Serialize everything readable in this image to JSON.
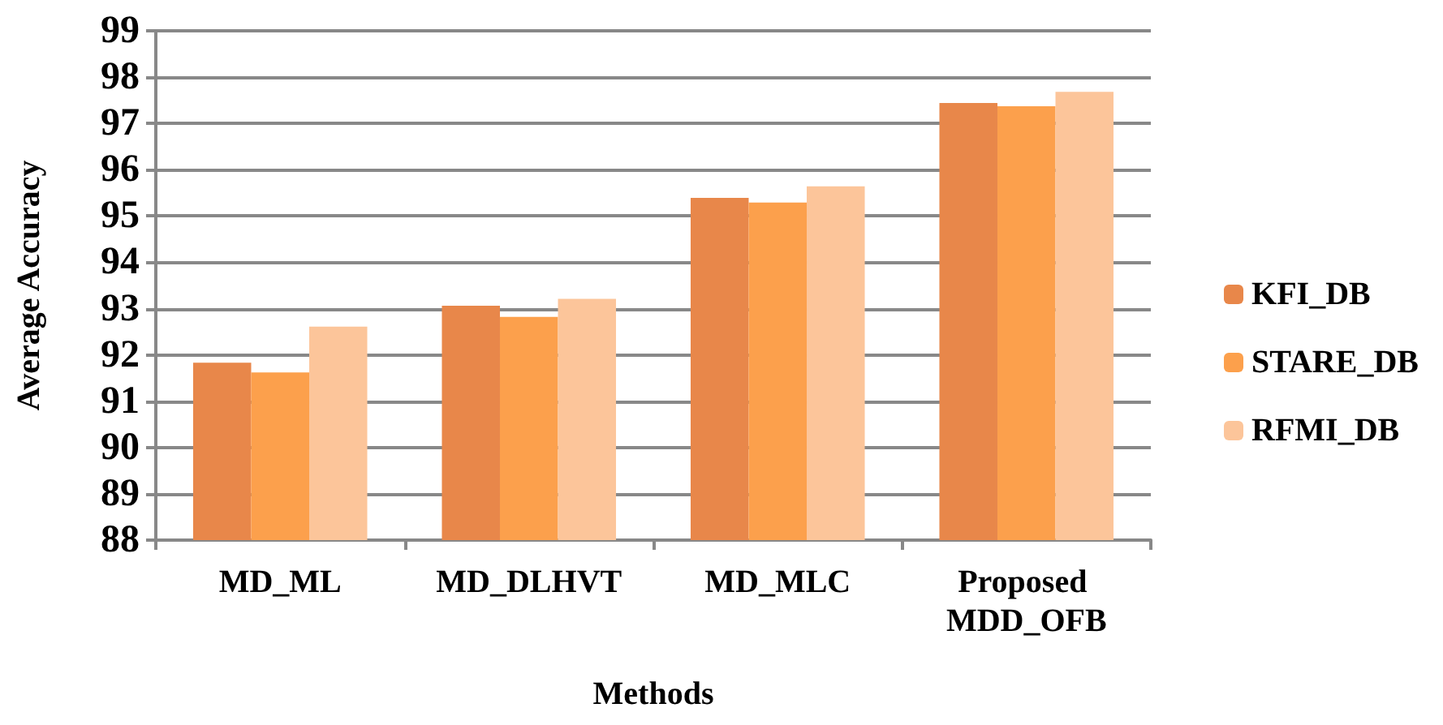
{
  "chart_data": {
    "type": "bar",
    "xlabel": "Methods",
    "ylabel": "Average Accuracy",
    "categories": [
      "MD_ML",
      "MD_DLHVT",
      "MD_MLC",
      "Proposed MDD_OFB"
    ],
    "series": [
      {
        "name": "KFI_DB",
        "color": "#e8874a",
        "values": [
          91.83,
          93.06,
          95.39,
          97.44
        ]
      },
      {
        "name": "STARE_DB",
        "color": "#fca04c",
        "values": [
          91.62,
          92.82,
          95.29,
          97.37
        ]
      },
      {
        "name": "RFMI_DB",
        "color": "#fcc59a",
        "values": [
          92.61,
          93.21,
          95.64,
          97.68
        ]
      }
    ],
    "ylim": [
      88,
      99
    ],
    "yticks": [
      88,
      89,
      90,
      91,
      92,
      93,
      94,
      95,
      96,
      97,
      98,
      99
    ],
    "grid": "y",
    "legend": "right"
  }
}
